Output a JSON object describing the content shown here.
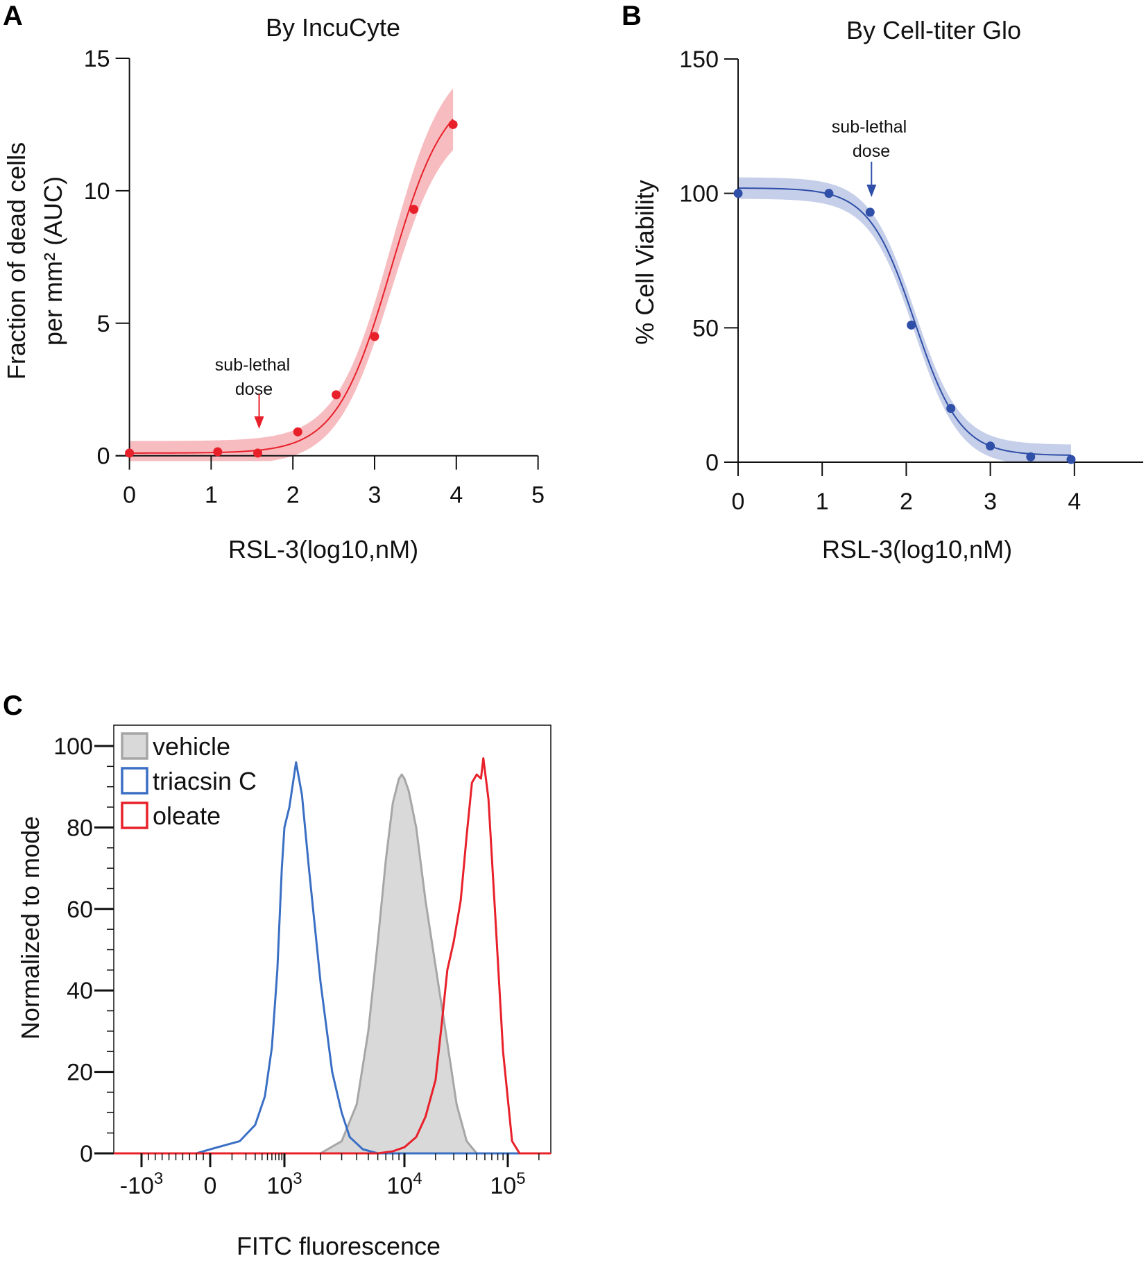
{
  "colors": {
    "panel_a": "#e8202a",
    "panel_a_band": "#f4a6ab",
    "panel_b": "#2f4fa8",
    "panel_b_band": "#b3bfe2",
    "vehicle_fill": "#d9d9d9",
    "vehicle_line": "#a6a6a6",
    "triacsin": "#3a6fc4",
    "oleate": "#e8202a"
  },
  "chart_data": [
    {
      "panel": "A",
      "type": "scatter",
      "title": "By IncuCyte",
      "xlabel": "RSL-3(log10,nM)",
      "ylabel": [
        "Fraction of dead cells",
        "per mm² (AUC)"
      ],
      "xlim": [
        0,
        5
      ],
      "ylim": [
        0,
        15
      ],
      "xticks": [
        "0",
        "1",
        "2",
        "3",
        "4",
        "5"
      ],
      "yticks": [
        "0",
        "5",
        "10",
        "15"
      ],
      "x": [
        0,
        1.08,
        1.57,
        2.06,
        2.53,
        3.0,
        3.48,
        3.96
      ],
      "y": [
        0.1,
        0.15,
        0.1,
        0.9,
        2.3,
        4.5,
        9.3,
        12.5
      ],
      "fit": {
        "bottom": 0.1,
        "top": 14.0,
        "ec50": 3.2,
        "hill": 1.3,
        "band": 0.45
      },
      "annotation": {
        "text": [
          "sub-lethal",
          "dose"
        ],
        "x": 1.57
      }
    },
    {
      "panel": "B",
      "type": "scatter",
      "title": "By Cell-titer Glo",
      "xlabel": "RSL-3(log10,nM)",
      "ylabel": "% Cell Viability",
      "xlim": [
        0,
        4.8
      ],
      "ylim": [
        0,
        150
      ],
      "xticks": [
        "0",
        "1",
        "2",
        "3",
        "4"
      ],
      "yticks": [
        "0",
        "50",
        "100",
        "150"
      ],
      "x": [
        0,
        1.08,
        1.57,
        2.06,
        2.53,
        3.0,
        3.48,
        3.96
      ],
      "y": [
        100,
        100,
        93,
        51,
        20,
        6,
        2,
        1
      ],
      "fit": {
        "bottom": 2.5,
        "top": 102,
        "ic50": 2.1,
        "hill": 1.6,
        "band": 4
      },
      "annotation": {
        "text": [
          "sub-lethal",
          "dose"
        ],
        "x": 1.57
      }
    },
    {
      "panel": "C",
      "type": "area",
      "xlabel": "FITC fluorescence",
      "ylabel": "Normalized to mode",
      "xscale": "biexponential",
      "ylim": [
        0,
        105
      ],
      "xticks": [
        {
          "base": "-10",
          "exp": "3"
        },
        {
          "base": "0",
          "exp": ""
        },
        {
          "base": "10",
          "exp": "3"
        },
        {
          "base": "10",
          "exp": "4"
        },
        {
          "base": "10",
          "exp": "5"
        }
      ],
      "yticks": [
        "0",
        "20",
        "40",
        "60",
        "80",
        "100"
      ],
      "legend_position": "top-left",
      "series": [
        {
          "name": "vehicle",
          "x": [
            2000,
            3000,
            4000,
            5000,
            6000,
            7000,
            8000,
            9000,
            9500,
            10000,
            11000,
            13000,
            16000,
            20000,
            25000,
            32000,
            40000,
            50000
          ],
          "y": [
            0,
            3,
            12,
            30,
            52,
            72,
            86,
            92,
            93,
            92,
            89,
            80,
            62,
            46,
            30,
            12,
            3,
            0
          ]
        },
        {
          "name": "triacsin C",
          "x": [
            -200,
            0,
            150,
            300,
            450,
            600,
            750,
            900,
            1000,
            1100,
            1250,
            1400,
            1600,
            2000,
            2500,
            3000,
            3500,
            4500,
            6000
          ],
          "y": [
            0,
            1,
            3,
            7,
            14,
            26,
            45,
            70,
            80,
            85,
            96,
            88,
            70,
            42,
            20,
            10,
            4,
            1,
            0
          ]
        },
        {
          "name": "oleate",
          "x": [
            6000,
            8000,
            10000,
            13000,
            16000,
            20000,
            23000,
            26000,
            30000,
            35000,
            40000,
            45000,
            50000,
            55000,
            58000,
            65000,
            75000,
            90000,
            110000,
            130000
          ],
          "y": [
            0,
            0.5,
            1.5,
            4,
            9,
            18,
            32,
            45,
            52,
            62,
            78,
            91,
            93,
            92,
            97,
            87,
            60,
            25,
            3,
            0
          ]
        }
      ]
    }
  ],
  "panel_labels": [
    "A",
    "B",
    "C"
  ]
}
